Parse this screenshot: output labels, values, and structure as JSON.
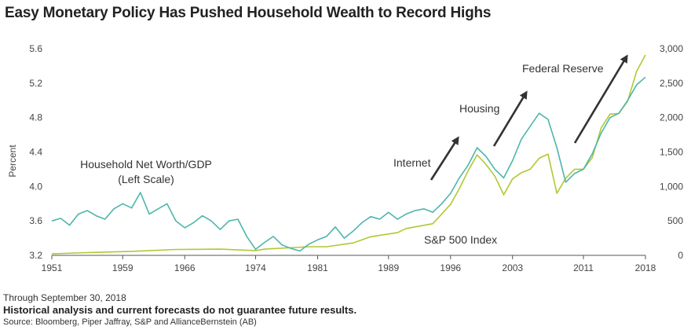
{
  "title": "Easy Monetary Policy Has Pushed Household Wealth to Record Highs",
  "footer": {
    "through": "Through September 30, 2018",
    "disclaimer": "Historical analysis and current forecasts do not guarantee future results.",
    "source": "Source: Bloomberg, Piper Jaffray, S&P and AllianceBernstein (AB)"
  },
  "colors": {
    "networth": "#4db6ac",
    "sp500": "#b3c733",
    "arrow": "#333333",
    "axis": "#555555"
  },
  "chart_data": {
    "type": "line",
    "ylabel": "Percent",
    "xlim": [
      1951,
      2018
    ],
    "x_ticks": [
      "1951",
      "1959",
      "1966",
      "1974",
      "1981",
      "1989",
      "1996",
      "2003",
      "2011",
      "2018"
    ],
    "y_left": {
      "lim": [
        3.2,
        5.6
      ],
      "ticks": [
        "3.2",
        "3.6",
        "4.0",
        "4.4",
        "4.8",
        "5.2",
        "5.6"
      ]
    },
    "y_right": {
      "lim": [
        0,
        3000
      ],
      "ticks": [
        "0",
        "500",
        "1,000",
        "1,500",
        "2,000",
        "2,500",
        "3,000"
      ]
    },
    "series": [
      {
        "name": "Household Net Worth/GDP (Left Scale)",
        "label_line1": "Household Net Worth/GDP",
        "label_line2": "(Left Scale)",
        "axis": "left",
        "x": [
          1951,
          1952,
          1953,
          1954,
          1955,
          1956,
          1957,
          1958,
          1959,
          1960,
          1961,
          1962,
          1963,
          1964,
          1965,
          1966,
          1967,
          1968,
          1969,
          1970,
          1971,
          1972,
          1973,
          1974,
          1975,
          1976,
          1977,
          1978,
          1979,
          1980,
          1981,
          1982,
          1983,
          1984,
          1985,
          1986,
          1987,
          1988,
          1989,
          1990,
          1991,
          1992,
          1993,
          1994,
          1995,
          1996,
          1997,
          1998,
          1999,
          2000,
          2001,
          2002,
          2003,
          2004,
          2005,
          2006,
          2007,
          2008,
          2009,
          2010,
          2011,
          2012,
          2013,
          2014,
          2015,
          2016,
          2017,
          2018
        ],
        "y": [
          3.6,
          3.63,
          3.55,
          3.68,
          3.72,
          3.66,
          3.62,
          3.74,
          3.8,
          3.75,
          3.93,
          3.68,
          3.74,
          3.8,
          3.6,
          3.52,
          3.58,
          3.66,
          3.6,
          3.5,
          3.6,
          3.62,
          3.42,
          3.27,
          3.35,
          3.42,
          3.32,
          3.28,
          3.25,
          3.33,
          3.38,
          3.42,
          3.53,
          3.4,
          3.48,
          3.58,
          3.65,
          3.62,
          3.7,
          3.62,
          3.68,
          3.72,
          3.74,
          3.7,
          3.8,
          3.92,
          4.1,
          4.25,
          4.45,
          4.35,
          4.2,
          4.1,
          4.3,
          4.55,
          4.7,
          4.85,
          4.78,
          4.45,
          4.05,
          4.15,
          4.2,
          4.38,
          4.62,
          4.8,
          4.85,
          5.0,
          5.18,
          5.27
        ]
      },
      {
        "name": "S&P 500 Index",
        "axis": "right",
        "x": [
          1951,
          1955,
          1960,
          1965,
          1970,
          1974,
          1975,
          1980,
          1982,
          1985,
          1987,
          1990,
          1991,
          1994,
          1995,
          1996,
          1997,
          1998,
          1999,
          2000,
          2001,
          2002,
          2003,
          2004,
          2005,
          2006,
          2007,
          2008,
          2009,
          2010,
          2011,
          2012,
          2013,
          2014,
          2015,
          2016,
          2017,
          2018
        ],
        "y": [
          22,
          40,
          58,
          85,
          90,
          70,
          90,
          125,
          125,
          180,
          270,
          330,
          390,
          460,
          600,
          740,
          970,
          1230,
          1460,
          1320,
          1150,
          880,
          1110,
          1200,
          1250,
          1410,
          1470,
          900,
          1120,
          1250,
          1250,
          1420,
          1850,
          2050,
          2060,
          2240,
          2670,
          2910
        ]
      }
    ],
    "annotations": [
      "Internet",
      "Housing",
      "Federal Reserve"
    ]
  }
}
